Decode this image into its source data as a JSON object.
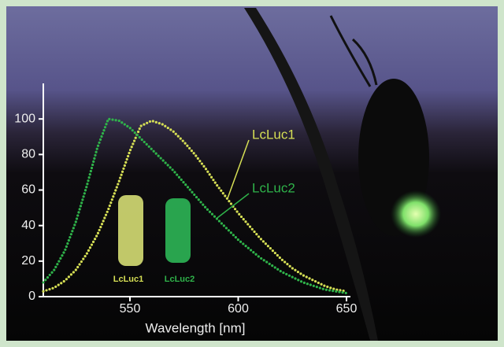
{
  "chart_data": {
    "type": "line",
    "x_label": "Wavelength [nm]",
    "x": [
      510,
      515,
      520,
      525,
      530,
      535,
      540,
      545,
      550,
      555,
      560,
      565,
      570,
      575,
      580,
      585,
      590,
      595,
      600,
      605,
      610,
      615,
      620,
      625,
      630,
      635,
      640,
      645,
      650
    ],
    "series": [
      {
        "name": "LcLuc1",
        "color": "#d6df55",
        "values": [
          3,
          5,
          9,
          15,
          24,
          35,
          49,
          65,
          82,
          96,
          99,
          97,
          93,
          87,
          80,
          72,
          63,
          55,
          47,
          40,
          33,
          27,
          21,
          16,
          12,
          9,
          6,
          4,
          3
        ]
      },
      {
        "name": "LcLuc2",
        "color": "#2fb34a",
        "values": [
          8,
          15,
          26,
          42,
          62,
          84,
          100,
          99,
          95,
          89,
          83,
          77,
          71,
          64,
          57,
          50,
          44,
          38,
          32,
          27,
          22,
          18,
          14,
          11,
          8,
          6,
          4,
          3,
          2
        ]
      }
    ],
    "xlim": [
      510,
      650
    ],
    "xticks": [
      550,
      600,
      650
    ],
    "ylim": [
      0,
      120
    ],
    "yticks": [
      0,
      20,
      40,
      60,
      80,
      100
    ]
  }
}
